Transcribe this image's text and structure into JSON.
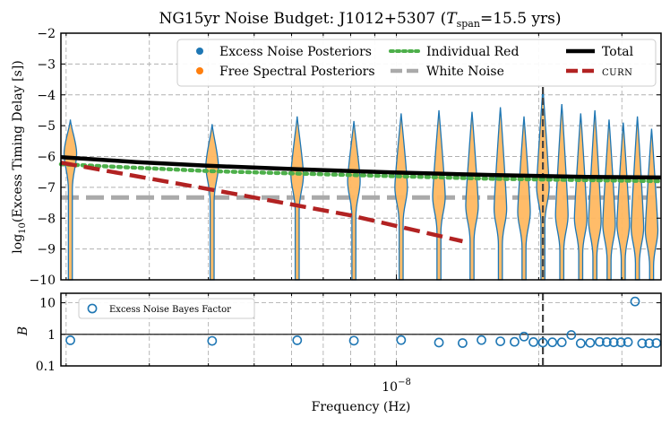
{
  "chart_data": [
    {
      "type": "violin",
      "title": "NG15yr Noise Budget: J1012+5307 (T_span=15.5 yrs)",
      "title_parts": {
        "prefix": "NG15yr Noise Budget: J1012+5307 (",
        "var": "T",
        "sub": "span",
        "suffix": "=15.5 yrs)"
      },
      "ylabel": "log10(Excess Timing Delay [s])",
      "ylabel_parts": {
        "pre": "log",
        "sub": "10",
        "post": "(Excess Timing Delay [s])"
      },
      "xscale": "log",
      "xlim_log10": [
        -8.71,
        -7.44
      ],
      "ylim": [
        -10,
        -2
      ],
      "yticks": [
        -10,
        -9,
        -8,
        -7,
        -6,
        -5,
        -4,
        -3,
        -2
      ],
      "ytick_labels": [
        "−10",
        "−9",
        "−8",
        "−7",
        "−6",
        "−5",
        "−4",
        "−3",
        "−2"
      ],
      "grid": true,
      "legend_position": "top-right",
      "legend": [
        {
          "label": "Excess Noise Posteriors",
          "color": "#1f77b4",
          "style": "dot"
        },
        {
          "label": "Free Spectral Posteriors",
          "color": "#ff7f0e",
          "style": "dot"
        },
        {
          "label": "Individual Red",
          "color": "#4daf4a",
          "style": "dotted"
        },
        {
          "label": "White Noise",
          "color": "#aaaaaa",
          "style": "dashed"
        },
        {
          "label": "Total",
          "color": "#000000",
          "style": "solid"
        },
        {
          "label": "CURN",
          "color": "#b22222",
          "style": "dashed"
        }
      ],
      "vline": {
        "freq_log10": -7.69,
        "color": "#444444",
        "style": "dashed"
      },
      "white_noise_level": -7.33,
      "individual_red": [
        {
          "log10_f": -8.71,
          "y": -6.25
        },
        {
          "log10_f": -8.4,
          "y": -6.47
        },
        {
          "log10_f": -8.1,
          "y": -6.6
        },
        {
          "log10_f": -7.8,
          "y": -6.72
        },
        {
          "log10_f": -7.44,
          "y": -6.8
        }
      ],
      "total": [
        {
          "log10_f": -8.71,
          "y": -6.02
        },
        {
          "log10_f": -8.55,
          "y": -6.18
        },
        {
          "log10_f": -8.4,
          "y": -6.3
        },
        {
          "log10_f": -8.2,
          "y": -6.42
        },
        {
          "log10_f": -8.0,
          "y": -6.52
        },
        {
          "log10_f": -7.8,
          "y": -6.6
        },
        {
          "log10_f": -7.6,
          "y": -6.66
        },
        {
          "log10_f": -7.44,
          "y": -6.68
        }
      ],
      "curn": [
        {
          "log10_f": -8.71,
          "y": -6.2
        },
        {
          "log10_f": -8.4,
          "y": -7.05
        },
        {
          "log10_f": -8.1,
          "y": -7.9
        },
        {
          "log10_f": -7.86,
          "y": -8.75
        }
      ],
      "violins": [
        {
          "log10_f": -8.69,
          "top": -4.8,
          "peak": -5.9
        },
        {
          "log10_f": -8.39,
          "top": -4.95,
          "peak": -6.3
        },
        {
          "log10_f": -8.21,
          "top": -4.7,
          "peak": -6.6
        },
        {
          "log10_f": -8.09,
          "top": -4.85,
          "peak": -6.8
        },
        {
          "log10_f": -7.99,
          "top": -4.6,
          "peak": -7.0
        },
        {
          "log10_f": -7.91,
          "top": -4.5,
          "peak": -7.3
        },
        {
          "log10_f": -7.84,
          "top": -4.55,
          "peak": -7.6
        },
        {
          "log10_f": -7.78,
          "top": -4.4,
          "peak": -7.7
        },
        {
          "log10_f": -7.73,
          "top": -4.7,
          "peak": -7.8
        },
        {
          "log10_f": -7.69,
          "top": -3.8,
          "peak": -7.0
        },
        {
          "log10_f": -7.65,
          "top": -4.3,
          "peak": -7.9
        },
        {
          "log10_f": -7.61,
          "top": -4.6,
          "peak": -8.0
        },
        {
          "log10_f": -7.58,
          "top": -4.5,
          "peak": -8.1
        },
        {
          "log10_f": -7.55,
          "top": -4.8,
          "peak": -8.2
        },
        {
          "log10_f": -7.52,
          "top": -4.9,
          "peak": -8.2
        },
        {
          "log10_f": -7.49,
          "top": -4.7,
          "peak": -8.3
        },
        {
          "log10_f": -7.46,
          "top": -5.1,
          "peak": -8.4
        }
      ]
    },
    {
      "type": "scatter",
      "ylabel": "B",
      "yscale": "log",
      "ylim": [
        0.1,
        20
      ],
      "yticks": [
        0.1,
        1,
        10
      ],
      "ytick_labels": [
        "0.1",
        "1",
        "10"
      ],
      "xscale": "log",
      "xlim_log10": [
        -8.71,
        -7.44
      ],
      "xlabel": "Frequency (Hz)",
      "xtick_major": {
        "log10_f": -8,
        "label_base": "10",
        "label_exp": "−8"
      },
      "hline": 1,
      "legend_position": "top-left",
      "legend": [
        {
          "label": "Excess Noise Bayes Factor",
          "color": "#1f77b4",
          "style": "open-circle"
        }
      ],
      "points": [
        {
          "log10_f": -8.69,
          "bf": 0.65
        },
        {
          "log10_f": -8.39,
          "bf": 0.62
        },
        {
          "log10_f": -8.21,
          "bf": 0.65
        },
        {
          "log10_f": -8.09,
          "bf": 0.63
        },
        {
          "log10_f": -7.99,
          "bf": 0.66
        },
        {
          "log10_f": -7.91,
          "bf": 0.55
        },
        {
          "log10_f": -7.86,
          "bf": 0.53
        },
        {
          "log10_f": -7.82,
          "bf": 0.66
        },
        {
          "log10_f": -7.78,
          "bf": 0.6
        },
        {
          "log10_f": -7.75,
          "bf": 0.58
        },
        {
          "log10_f": -7.73,
          "bf": 0.85
        },
        {
          "log10_f": -7.71,
          "bf": 0.57
        },
        {
          "log10_f": -7.69,
          "bf": 0.55
        },
        {
          "log10_f": -7.67,
          "bf": 0.56
        },
        {
          "log10_f": -7.65,
          "bf": 0.56
        },
        {
          "log10_f": -7.63,
          "bf": 0.95
        },
        {
          "log10_f": -7.61,
          "bf": 0.52
        },
        {
          "log10_f": -7.59,
          "bf": 0.54
        },
        {
          "log10_f": -7.57,
          "bf": 0.58
        },
        {
          "log10_f": -7.555,
          "bf": 0.57
        },
        {
          "log10_f": -7.54,
          "bf": 0.56
        },
        {
          "log10_f": -7.525,
          "bf": 0.56
        },
        {
          "log10_f": -7.51,
          "bf": 0.57
        },
        {
          "log10_f": -7.495,
          "bf": 11.0
        },
        {
          "log10_f": -7.48,
          "bf": 0.52
        },
        {
          "log10_f": -7.465,
          "bf": 0.52
        },
        {
          "log10_f": -7.45,
          "bf": 0.53
        }
      ]
    }
  ]
}
